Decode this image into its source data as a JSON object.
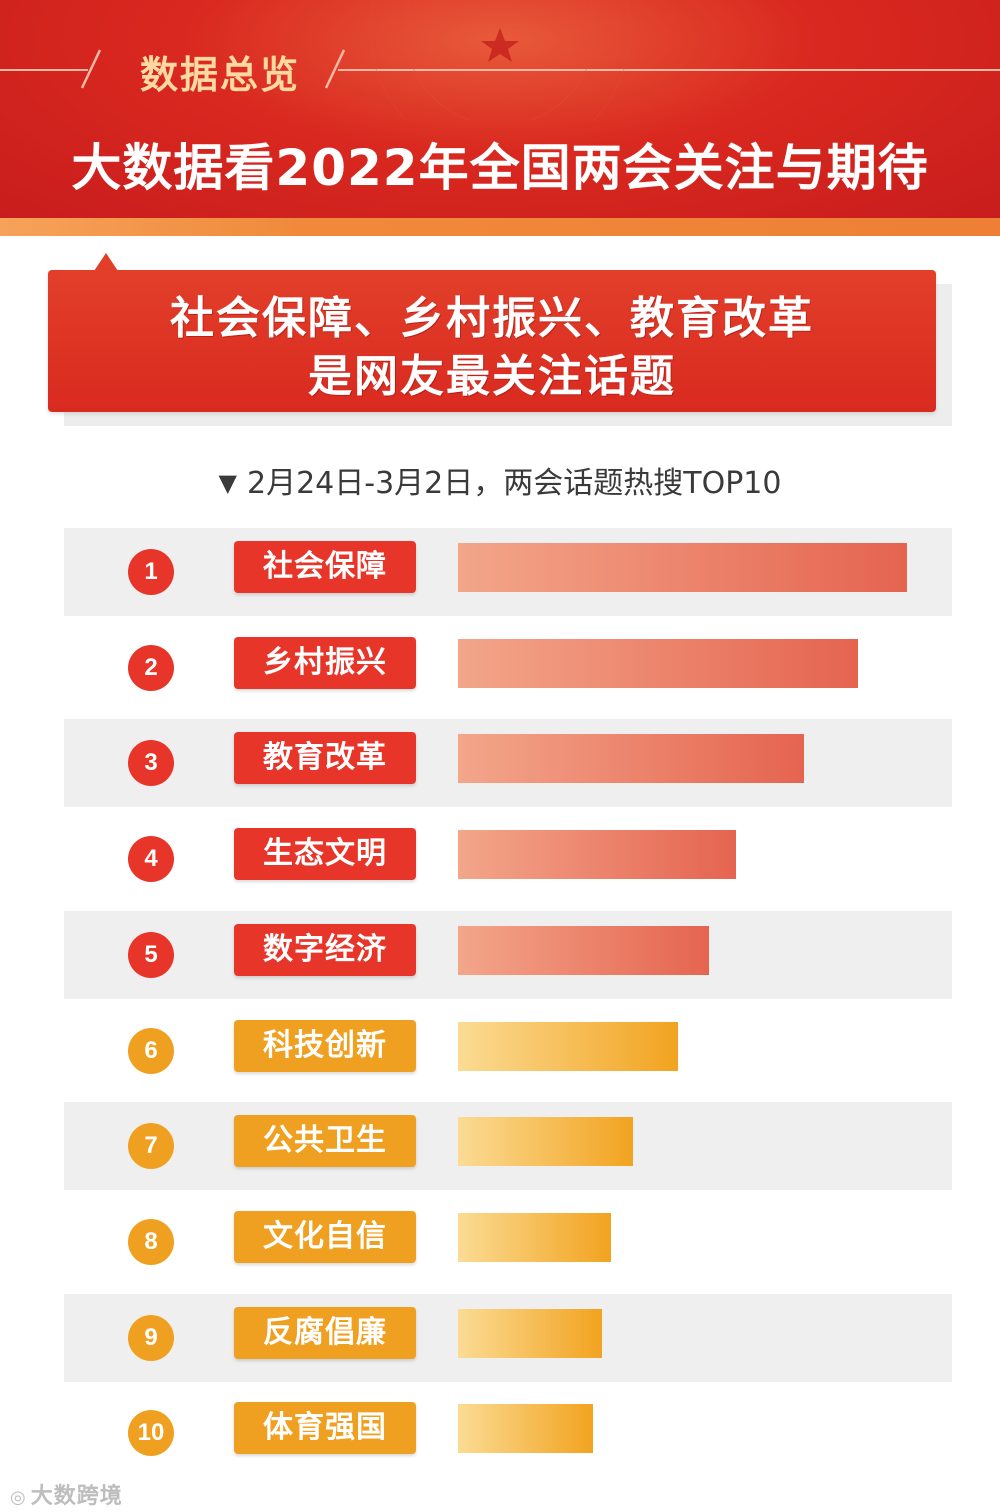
{
  "header": {
    "section_label": "数据总览",
    "title": "大数据看2022年全国两会关注与期待"
  },
  "banner": {
    "line1": "社会保障、乡村振兴、教育改革",
    "line2": "是网友最关注话题"
  },
  "subtitle": "2月24日-3月2日，两会话题热搜TOP10",
  "colors": {
    "header_red": "#d9281f",
    "top5_red": "#e8352a",
    "rest_orange": "#f0a020",
    "section_label_gold": "#ffd9a0"
  },
  "chart_data": {
    "type": "bar",
    "orientation": "horizontal",
    "title": "2月24日-3月2日，两会话题热搜TOP10",
    "ranks": [
      "1",
      "2",
      "3",
      "4",
      "5",
      "6",
      "7",
      "8",
      "9",
      "10"
    ],
    "categories": [
      "社会保障",
      "乡村振兴",
      "教育改革",
      "生态文明",
      "数字经济",
      "科技创新",
      "公共卫生",
      "文化自信",
      "反腐倡廉",
      "体育强国"
    ],
    "values": [
      100,
      89,
      77,
      62,
      56,
      49,
      39,
      34,
      32,
      30
    ],
    "value_unit": "relative search heat (no axis printed; index of top item = 100)",
    "groups": [
      "red",
      "red",
      "red",
      "red",
      "red",
      "orange",
      "orange",
      "orange",
      "orange",
      "orange"
    ],
    "grid": false,
    "legend": "none"
  },
  "watermark": {
    "icon": "ebrun-logo-icon",
    "text": "大数跨境"
  }
}
